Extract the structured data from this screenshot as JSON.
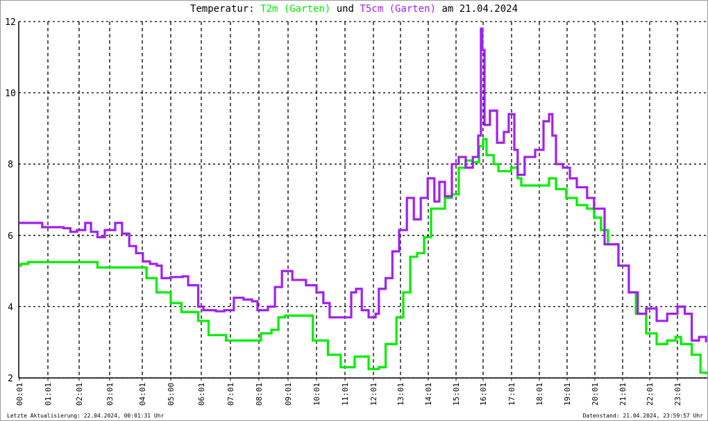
{
  "title": {
    "prefix": "Temperatur:",
    "series1": "T2m (Garten)",
    "middle": "und",
    "series2": "T5cm (Garten)",
    "suffix": "am 21.04.2024"
  },
  "footer": {
    "left": "Letzte Aktualisierung: 22.04.2024, 00:01:31 Uhr",
    "right": "Datenstand: 21.04.2024, 23:59:57 Uhr"
  },
  "chart_data": {
    "type": "line",
    "ylim": [
      2,
      12
    ],
    "yticks": [
      "2",
      "4",
      "6",
      "8",
      "10",
      "12"
    ],
    "xlim_hours": [
      0,
      24
    ],
    "xticks": [
      "00:01",
      "01:01",
      "02:01",
      "03:01",
      "04:01",
      "05:00",
      "06:01",
      "07:01",
      "08:01",
      "09:01",
      "10:01",
      "11:01",
      "12:01",
      "13:01",
      "14:01",
      "15:01",
      "16:01",
      "17:01",
      "18:01",
      "19:01",
      "20:01",
      "21:01",
      "22:01",
      "23:01"
    ],
    "grid": true,
    "series": [
      {
        "name": "T2m (Garten)",
        "color": "#00ee00",
        "x": [
          0,
          0.05,
          0.3,
          2.6,
          2.6,
          3.9,
          4.15,
          4.5,
          5.0,
          5.35,
          5.9,
          6.25,
          6.85,
          7.85,
          8.07,
          8.43,
          8.67,
          8.9,
          9.5,
          9.87,
          10.4,
          10.85,
          11.1,
          11.34,
          11.6,
          11.83,
          12.2,
          12.45,
          12.85,
          13.1,
          13.35,
          13.6,
          13.85,
          14.1,
          14.4,
          14.6,
          14.85,
          15.1,
          15.35,
          15.6,
          15.85,
          16.0,
          16.12,
          16.37,
          16.54,
          16.85,
          16.98,
          17.22,
          17.35,
          17.97,
          18.35,
          18.6,
          18.97,
          19.35,
          19.72,
          19.97,
          20.22,
          20.47,
          20.85,
          21.23,
          21.49,
          21.87,
          22.25,
          22.63,
          22.93,
          23.12,
          23.49,
          23.79,
          23.98
        ],
        "y": [
          5.15,
          5.2,
          5.25,
          5.25,
          5.1,
          5.1,
          4.8,
          4.4,
          4.1,
          3.85,
          3.6,
          3.2,
          3.05,
          3.05,
          3.25,
          3.35,
          3.7,
          3.75,
          3.75,
          3.05,
          2.65,
          2.3,
          2.3,
          2.6,
          2.6,
          2.25,
          2.3,
          2.95,
          3.7,
          4.4,
          5.4,
          5.5,
          5.95,
          6.75,
          6.75,
          7.05,
          7.15,
          7.9,
          8.1,
          8.05,
          8.5,
          8.7,
          8.25,
          8.0,
          7.8,
          7.8,
          7.9,
          7.6,
          7.4,
          7.4,
          7.6,
          7.3,
          7.05,
          6.85,
          6.75,
          6.5,
          6.15,
          5.75,
          5.15,
          4.4,
          3.8,
          3.25,
          2.95,
          3.05,
          3.15,
          2.95,
          2.65,
          2.15,
          2.1
        ]
      },
      {
        "name": "T5cm (Garten)",
        "color": "#a020f0",
        "x": [
          0,
          0.32,
          0.8,
          1.17,
          1.5,
          1.72,
          1.93,
          2.2,
          2.39,
          2.6,
          2.84,
          3.17,
          3.38,
          3.6,
          3.81,
          4.02,
          4.27,
          4.51,
          4.68,
          5.0,
          5.39,
          5.57,
          5.9,
          6.07,
          6.5,
          6.79,
          7.12,
          7.46,
          7.76,
          7.95,
          8.31,
          8.55,
          8.79,
          9.15,
          9.63,
          10.0,
          10.24,
          10.46,
          10.85,
          11.22,
          11.39,
          11.59,
          11.83,
          12.08,
          12.2,
          12.45,
          12.7,
          12.95,
          13.23,
          13.48,
          13.73,
          13.98,
          14.22,
          14.4,
          14.6,
          14.85,
          15.1,
          15.36,
          15.62,
          15.82,
          15.92,
          15.97,
          16.05,
          16.24,
          16.49,
          16.73,
          16.9,
          17.1,
          17.22,
          17.47,
          17.85,
          18.15,
          18.35,
          18.47,
          18.6,
          18.85,
          19.1,
          19.35,
          19.72,
          19.97,
          20.35,
          20.85,
          21.23,
          21.56,
          21.87,
          22.25,
          22.63,
          23.0,
          23.25,
          23.49,
          23.74,
          23.98
        ],
        "y": [
          6.35,
          6.35,
          6.23,
          6.23,
          6.2,
          6.1,
          6.15,
          6.35,
          6.1,
          5.95,
          6.15,
          6.35,
          6.05,
          5.7,
          5.5,
          5.27,
          5.2,
          5.15,
          4.8,
          4.83,
          4.85,
          4.6,
          4.0,
          3.9,
          3.87,
          3.9,
          4.25,
          4.2,
          4.15,
          3.9,
          4.0,
          4.55,
          5.0,
          4.75,
          4.6,
          4.4,
          4.1,
          3.7,
          3.7,
          4.4,
          4.5,
          3.9,
          3.7,
          3.8,
          4.5,
          4.8,
          5.55,
          6.15,
          7.05,
          6.45,
          7.05,
          7.6,
          6.95,
          7.5,
          7.1,
          8.0,
          8.2,
          7.9,
          8.2,
          8.8,
          11.8,
          11.2,
          9.1,
          9.5,
          8.6,
          8.9,
          9.4,
          8.4,
          7.7,
          8.2,
          8.4,
          9.2,
          9.4,
          8.8,
          8.0,
          7.9,
          7.6,
          7.35,
          7.05,
          6.75,
          5.75,
          5.15,
          4.4,
          3.8,
          3.95,
          3.6,
          3.8,
          4.0,
          3.8,
          3.05,
          3.15,
          3.0
        ]
      }
    ]
  }
}
